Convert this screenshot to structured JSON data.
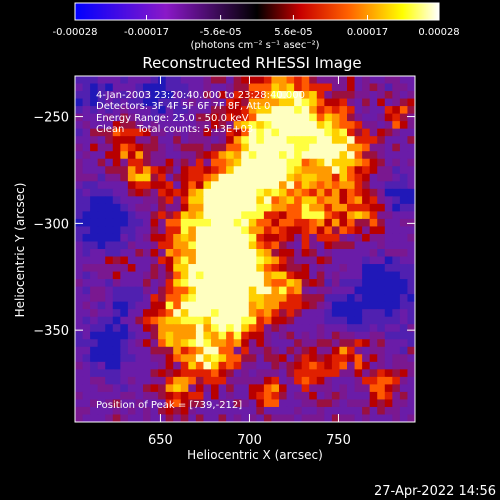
{
  "colorbar": {
    "tick_labels": [
      "-0.00028",
      "-0.00017",
      "-5.6e-05",
      "5.6e-05",
      "0.00017",
      "0.00028"
    ],
    "tick_values": [
      -0.00028,
      -0.00017,
      -5.6e-05,
      5.6e-05,
      0.00017,
      0.00028
    ],
    "range": [
      -0.00028,
      0.00028
    ],
    "units": "(photons cm⁻² s⁻¹ asec⁻²)",
    "colors": {
      "neg_low": "#0000ff",
      "neg_mid": "#8a18c8",
      "zero": "#000000",
      "pos_low": "#c80000",
      "pos_mid": "#ff8000",
      "pos_high": "#ffff00",
      "peak": "#ffffff"
    }
  },
  "chart_data": {
    "type": "heatmap",
    "title": "Reconstructed RHESSI Image",
    "xlabel": "Heliocentric X (arcsec)",
    "ylabel": "Heliocentric Y (arcsec)",
    "xlim": [
      602,
      793
    ],
    "ylim": [
      -393,
      -231
    ],
    "x_ticks": [
      650,
      700,
      750
    ],
    "y_ticks": [
      -250,
      -300,
      -350
    ],
    "info_lines": [
      "4-Jan-2003 23:20:40.000 to 23:28:40.000",
      "Detectors: 3F 4F 5F 6F 7F 8F, Att 0",
      "Energy Range: 25.0 - 50.0 keV",
      "Clean    Total counts: 5.13E+03"
    ],
    "peak_label": "Position of Peak = [739,-212]",
    "peak_position": [
      739,
      -212
    ]
  },
  "footer": {
    "timestamp": "27-Apr-2022 14:56"
  }
}
